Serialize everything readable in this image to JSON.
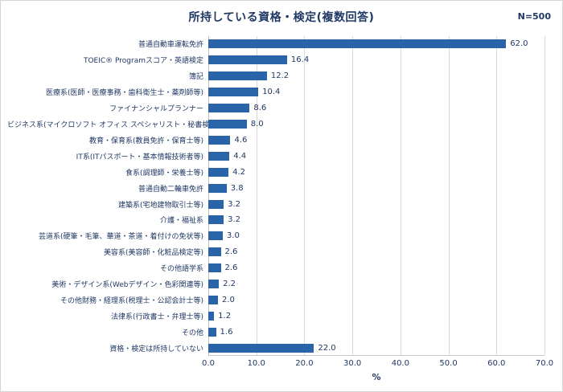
{
  "header": {
    "title": "所持している資格・検定(複数回答)",
    "n_label": "N=500"
  },
  "chart_data": {
    "type": "bar",
    "orientation": "horizontal",
    "title": "所持している資格・検定(複数回答)",
    "categories": [
      "普通自動車運転免許",
      "TOEIC® Programスコア・英語検定",
      "簿記",
      "医療系(医師・医療事務・歯科衛生士・薬剤師等)",
      "ファイナンシャルプランナー",
      "ビジネス系(マイクロソフト オフィス スペシャリスト・秘書検定等)",
      "教育・保育系(教員免許・保育士等)",
      "IT系(ITパスポート・基本情報技術者等)",
      "食系(調理師・栄養士等)",
      "普通自動二輪車免許",
      "建築系(宅地建物取引士等)",
      "介護・福祉系",
      "芸道系(硬筆・毛筆、華道・茶道・着付けの免状等)",
      "美容系(美容師・化粧品検定等)",
      "その他語学系",
      "美術・デザイン系(Webデザイン・色彩関連等)",
      "その他財務・経理系(税理士・公認会計士等)",
      "法律系(行政書士・弁理士等)",
      "その他",
      "資格・検定は所持していない"
    ],
    "values": [
      62.0,
      16.4,
      12.2,
      10.4,
      8.6,
      8.0,
      4.6,
      4.4,
      4.2,
      3.8,
      3.2,
      3.2,
      3.0,
      2.6,
      2.6,
      2.2,
      2.0,
      1.2,
      1.6,
      22.0
    ],
    "xlim": [
      0,
      70
    ],
    "xticks": [
      "0.0",
      "10.0",
      "20.0",
      "30.0",
      "40.0",
      "50.0",
      "60.0",
      "70.0"
    ],
    "xlabel": "%",
    "bar_color": "#2A64A8",
    "text_color": "#1F3864",
    "grid": true,
    "legend": "none"
  }
}
